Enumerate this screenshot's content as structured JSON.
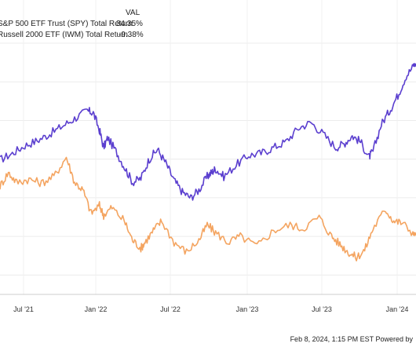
{
  "legend": {
    "header": "VAL",
    "rows": [
      {
        "label": "S&P 500 ETF Trust (SPY) Total Return",
        "value": "34.35%",
        "color": "#5b3fcf"
      },
      {
        "label": "Russell 2000 ETF (IWM) Total Return",
        "value": "-9.38%",
        "color": "#f4a460"
      }
    ]
  },
  "footer": {
    "text": "Feb 8, 2024, 1:15 PM EST Powered by"
  },
  "chart_data": {
    "type": "line",
    "x_ticks": [
      "Jul '21",
      "Jan '22",
      "Jul '22",
      "Jan '23",
      "Jul '23",
      "Jan '24"
    ],
    "grid": true,
    "series": [
      {
        "name": "S&P 500 ETF Trust (SPY) Total Return",
        "color": "#5b3fcf",
        "x": [
          0,
          0.03,
          0.06,
          0.09,
          0.12,
          0.15,
          0.18,
          0.21,
          0.225,
          0.24,
          0.25,
          0.26,
          0.28,
          0.3,
          0.32,
          0.34,
          0.36,
          0.38,
          0.4,
          0.42,
          0.44,
          0.46,
          0.48,
          0.5,
          0.51,
          0.52,
          0.54,
          0.57,
          0.6,
          0.63,
          0.66,
          0.69,
          0.72,
          0.75,
          0.78,
          0.81,
          0.83,
          0.85,
          0.87,
          0.89,
          0.9,
          0.92,
          0.94,
          0.96,
          0.98,
          1.0
        ],
        "values": [
          9.8,
          11.5,
          13.5,
          14.8,
          16.5,
          18.5,
          20.5,
          22.5,
          22.0,
          17.5,
          13.0,
          15.5,
          12.0,
          8.0,
          4.0,
          5.0,
          10.0,
          12.5,
          9.0,
          4.5,
          1.5,
          0.0,
          2.0,
          5.5,
          6.5,
          7.5,
          5.5,
          8.5,
          11.0,
          11.5,
          13.0,
          14.5,
          18.0,
          19.5,
          16.5,
          13.0,
          14.0,
          16.0,
          14.5,
          10.5,
          12.0,
          19.0,
          22.5,
          26.5,
          31.5,
          34.35
        ]
      },
      {
        "name": "Russell 2000 ETF (IWM) Total Return",
        "color": "#f4a460",
        "x": [
          0,
          0.02,
          0.04,
          0.07,
          0.1,
          0.13,
          0.16,
          0.18,
          0.2,
          0.22,
          0.24,
          0.25,
          0.27,
          0.3,
          0.32,
          0.34,
          0.35,
          0.37,
          0.39,
          0.42,
          0.45,
          0.48,
          0.5,
          0.52,
          0.55,
          0.58,
          0.62,
          0.66,
          0.7,
          0.73,
          0.77,
          0.8,
          0.82,
          0.84,
          0.86,
          0.88,
          0.9,
          0.93,
          0.95,
          0.97,
          1.0
        ],
        "values": [
          3.0,
          6.5,
          4.0,
          4.8,
          3.8,
          5.5,
          10.5,
          4.0,
          2.0,
          -4.0,
          -2.0,
          -4.5,
          -2.5,
          -6.0,
          -11.0,
          -13.0,
          -11.5,
          -8.5,
          -6.0,
          -11.5,
          -14.0,
          -11.0,
          -7.0,
          -9.0,
          -11.5,
          -10.0,
          -12.5,
          -8.5,
          -7.0,
          -8.0,
          -5.0,
          -10.0,
          -12.0,
          -14.0,
          -15.5,
          -13.5,
          -8.0,
          -3.0,
          -6.0,
          -6.5,
          -9.38
        ]
      }
    ]
  }
}
